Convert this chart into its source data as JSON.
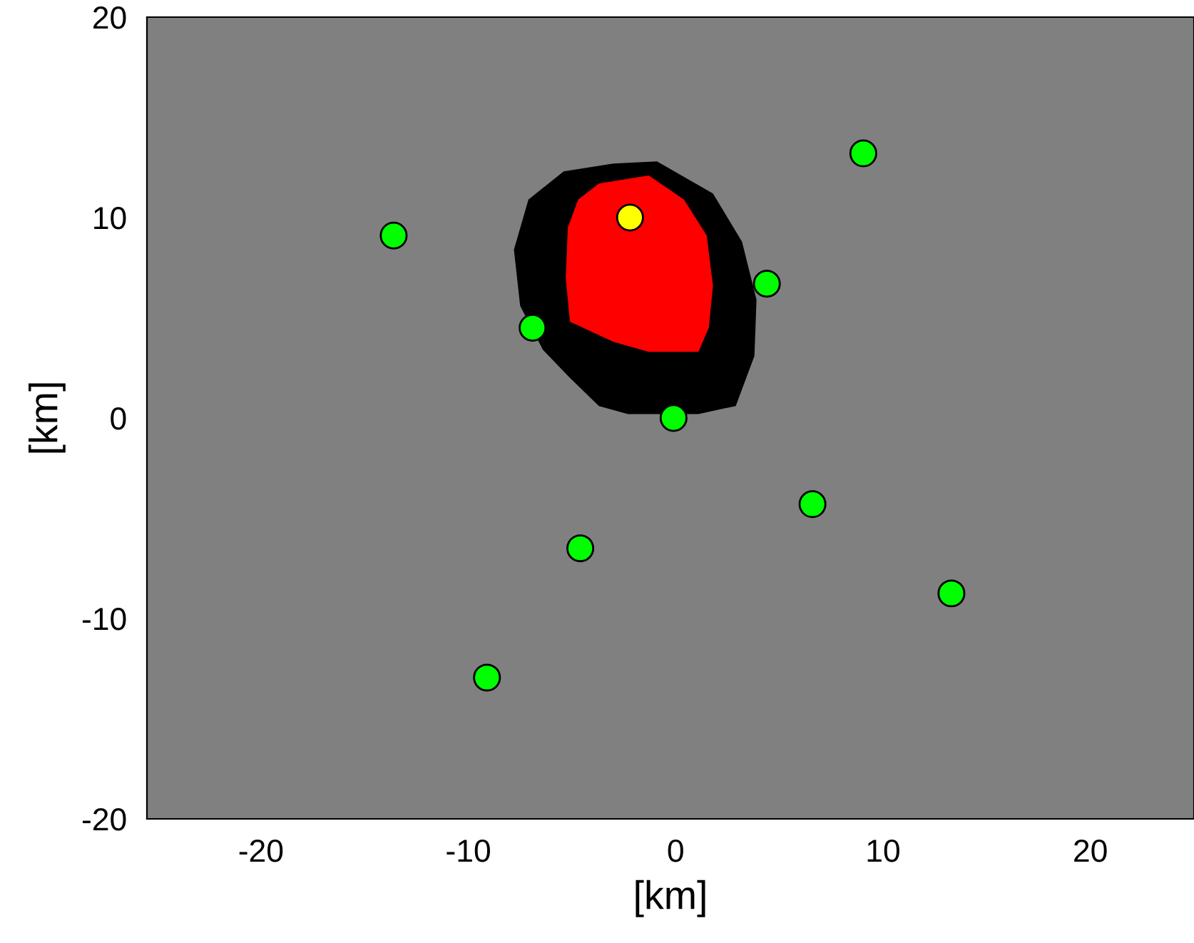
{
  "chart_data": {
    "type": "scatter",
    "xlabel": "[km]",
    "ylabel": "[km]",
    "xlim": [
      -25.5,
      25
    ],
    "ylim": [
      -20,
      20
    ],
    "xticks": [
      -20,
      -10,
      0,
      10,
      20
    ],
    "yticks": [
      -20,
      -10,
      0,
      10,
      20
    ],
    "grid": false,
    "legend": false,
    "series": [
      {
        "type": "area",
        "color": "#000000",
        "x": [
          -5.4,
          -3.0,
          -0.9,
          1.8,
          3.2,
          3.9,
          3.8,
          2.9,
          1.1,
          -2.3,
          -3.7,
          -5.1,
          -6.4,
          -7.5,
          -7.8,
          -7.1
        ],
        "values": [
          12.3,
          12.7,
          12.8,
          11.2,
          8.8,
          5.9,
          3.1,
          0.6,
          0.2,
          0.2,
          0.6,
          2.0,
          3.4,
          5.6,
          8.4,
          10.9
        ]
      },
      {
        "type": "area",
        "color": "#ff0000",
        "x": [
          -3.7,
          -1.3,
          0.4,
          1.5,
          1.8,
          1.6,
          1.1,
          -1.3,
          -3.0,
          -5.1,
          -5.3,
          -5.2,
          -4.7
        ],
        "values": [
          11.7,
          12.1,
          10.9,
          9.1,
          6.6,
          4.5,
          3.3,
          3.3,
          3.8,
          4.8,
          7.0,
          9.5,
          10.9
        ]
      },
      {
        "marker": "circle",
        "color": "#00ff00",
        "x": [
          -13.6,
          -6.9,
          9.05,
          4.4,
          -0.1,
          6.6,
          -4.6,
          13.3,
          -9.1
        ],
        "values": [
          9.1,
          4.5,
          13.2,
          6.7,
          0.0,
          -4.3,
          -6.5,
          -8.75,
          -12.95
        ]
      },
      {
        "marker": "circle",
        "color": "#ffff00",
        "x": [
          -2.2
        ],
        "values": [
          10.0
        ]
      }
    ]
  }
}
